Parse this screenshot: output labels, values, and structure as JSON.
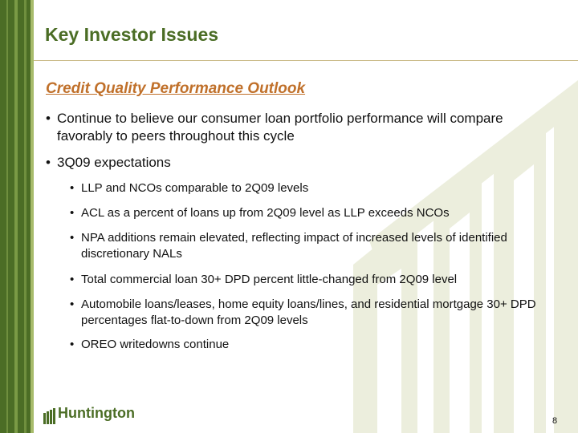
{
  "slide": {
    "title": "Key Investor Issues",
    "subtitle": "Credit Quality Performance Outlook",
    "bullets": [
      {
        "text": "Continue to believe our consumer loan portfolio performance will compare favorably to peers throughout this cycle"
      },
      {
        "text": "3Q09 expectations"
      }
    ],
    "sub_bullets": [
      {
        "text": "LLP and NCOs comparable to 2Q09 levels"
      },
      {
        "text": "ACL as a percent of loans up from 2Q09 level as LLP exceeds NCOs"
      },
      {
        "text": "NPA additions remain elevated, reflecting impact of increased levels of identified discretionary NALs"
      },
      {
        "text": "Total commercial loan 30+ DPD percent little-changed from 2Q09 level"
      },
      {
        "text": "Automobile loans/leases, home equity loans/lines, and residential mortgage 30+ DPD percentages flat-to-down from 2Q09 levels"
      },
      {
        "text": "OREO writedowns continue"
      }
    ],
    "bullet_glyph": "•",
    "logo_text": "Huntington",
    "page_number": "8"
  },
  "colors": {
    "brand_green": "#4b6d25",
    "subtitle_orange": "#c0702a",
    "rule": "#c9ba86",
    "watermark": "#eceedd"
  }
}
